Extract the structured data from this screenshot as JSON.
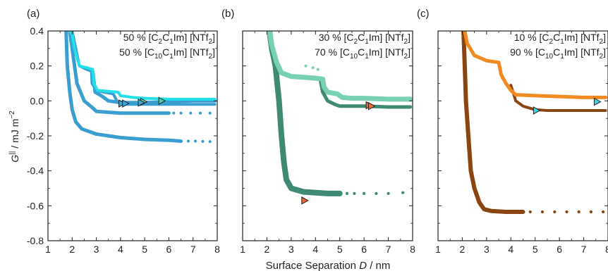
{
  "figure": {
    "ylabel_main": "G",
    "ylabel_sup": "||",
    "ylabel_rest": " / mJ m",
    "ylabel_exp": "−2",
    "xlabel_main": "Surface Separation ",
    "xlabel_var": "D",
    "xlabel_unit": " / nm"
  },
  "chart_data": [
    {
      "type": "scatter",
      "panel_label": "(a)",
      "legend": [
        {
          "parts": [
            "50 % [C",
            "2",
            "C",
            "1",
            "Im] [NTf",
            "2",
            "]"
          ]
        },
        {
          "parts": [
            "50 % [C",
            "10",
            "C",
            "1",
            "Im] [NTf",
            "2",
            "]"
          ]
        }
      ],
      "xlim": [
        1,
        8
      ],
      "ylim": [
        -0.8,
        0.4
      ],
      "xticks": [
        1,
        2,
        3,
        4,
        5,
        6,
        7,
        8
      ],
      "yticks": [
        -0.8,
        -0.6,
        -0.4,
        -0.2,
        0.0,
        0.2,
        0.4
      ],
      "series": [
        {
          "color": "#3a9fd0",
          "kind": "line",
          "width": 5,
          "points": [
            [
              1.75,
              0.4
            ],
            [
              1.8,
              0.2
            ],
            [
              1.9,
              0.05
            ],
            [
              2.0,
              -0.05
            ],
            [
              2.15,
              -0.12
            ],
            [
              2.4,
              -0.16
            ],
            [
              3.0,
              -0.19
            ],
            [
              4.0,
              -0.21
            ],
            [
              5.0,
              -0.22
            ],
            [
              6.0,
              -0.225
            ],
            [
              6.5,
              -0.23
            ]
          ]
        },
        {
          "color": "#3a9fd0",
          "kind": "dots",
          "points": [
            [
              6.5,
              -0.23
            ],
            [
              6.8,
              -0.23
            ],
            [
              7.1,
              -0.23
            ],
            [
              7.4,
              -0.232
            ],
            [
              7.7,
              -0.233
            ]
          ]
        },
        {
          "color": "#3a9fd0",
          "kind": "line",
          "width": 5,
          "points": [
            [
              1.9,
              0.4
            ],
            [
              2.0,
              0.3
            ],
            [
              2.2,
              0.1
            ],
            [
              2.5,
              0.0
            ],
            [
              2.85,
              -0.04
            ],
            [
              3.0,
              -0.06
            ],
            [
              3.5,
              -0.065
            ],
            [
              4.0,
              -0.07
            ],
            [
              5.0,
              -0.07
            ],
            [
              6.0,
              -0.07
            ]
          ]
        },
        {
          "color": "#3a9fd0",
          "kind": "dots",
          "points": [
            [
              6.2,
              -0.07
            ],
            [
              6.5,
              -0.07
            ],
            [
              6.9,
              -0.07
            ],
            [
              7.3,
              -0.07
            ],
            [
              7.7,
              -0.07
            ]
          ]
        },
        {
          "color": "#3a9fd0",
          "kind": "line",
          "width": 4,
          "points": [
            [
              2.0,
              0.4
            ],
            [
              2.3,
              0.2
            ],
            [
              2.6,
              0.18
            ],
            [
              2.8,
              0.17
            ],
            [
              2.82,
              0.1
            ],
            [
              3.0,
              0.06
            ],
            [
              3.3,
              0.05
            ],
            [
              3.7,
              0.04
            ],
            [
              3.85,
              0.0
            ],
            [
              4.0,
              -0.02
            ],
            [
              5.0,
              -0.02
            ],
            [
              6.0,
              -0.02
            ],
            [
              7.0,
              -0.02
            ],
            [
              7.9,
              -0.02
            ]
          ]
        },
        {
          "color": "#3a9fd0",
          "kind": "line",
          "width": 5,
          "points": [
            [
              2.85,
              0.17
            ],
            [
              2.95,
              0.05
            ],
            [
              3.2,
              0.03
            ],
            [
              3.5,
              0.0
            ],
            [
              4.0,
              -0.01
            ],
            [
              5.0,
              -0.01
            ],
            [
              6.0,
              -0.005
            ],
            [
              7.0,
              0.0
            ],
            [
              7.9,
              0.0
            ]
          ]
        },
        {
          "color": "#22e0ea",
          "kind": "line",
          "width": 4,
          "points": [
            [
              1.9,
              0.4
            ],
            [
              2.0,
              0.38
            ],
            [
              2.1,
              0.3
            ],
            [
              2.3,
              0.2
            ],
            [
              2.6,
              0.19
            ],
            [
              2.85,
              0.18
            ],
            [
              2.9,
              0.1
            ],
            [
              3.05,
              0.06
            ],
            [
              3.5,
              0.055
            ],
            [
              3.9,
              0.05
            ],
            [
              4.0,
              0.03
            ],
            [
              4.5,
              0.02
            ],
            [
              5.0,
              0.015
            ],
            [
              6.0,
              0.01
            ],
            [
              7.0,
              0.01
            ],
            [
              7.9,
              0.01
            ]
          ]
        }
      ],
      "markers": [
        {
          "x": 4.05,
          "y": -0.015,
          "fill": "#3aa8d8",
          "stroke": "#222"
        },
        {
          "x": 4.2,
          "y": -0.015,
          "fill": "#3aa8d8",
          "stroke": "#222"
        },
        {
          "x": 4.95,
          "y": -0.005,
          "fill": "#52c9a8",
          "stroke": "#222"
        },
        {
          "x": 4.85,
          "y": -0.01,
          "fill": "#3aa8d8",
          "stroke": "#222"
        },
        {
          "x": 5.7,
          "y": 0.0,
          "fill": "#52c9a8",
          "stroke": "#222"
        }
      ]
    },
    {
      "type": "scatter",
      "panel_label": "(b)",
      "legend": [
        {
          "parts": [
            "30 % [C",
            "2",
            "C",
            "1",
            "Im] [NTf",
            "2",
            "]"
          ]
        },
        {
          "parts": [
            "70 % [C",
            "10",
            "C",
            "1",
            "Im] [NTf",
            "2",
            "]"
          ]
        }
      ],
      "xlim": [
        1,
        8
      ],
      "ylim": [
        -0.8,
        0.4
      ],
      "xticks": [
        1,
        2,
        3,
        4,
        5,
        6,
        7,
        8
      ],
      "yticks": [
        -0.8,
        -0.6,
        -0.4,
        -0.2,
        0.0,
        0.2,
        0.4
      ],
      "series": [
        {
          "color": "#3e8a74",
          "kind": "line",
          "width": 8,
          "points": [
            [
              2.1,
              0.4
            ],
            [
              2.2,
              0.3
            ],
            [
              2.35,
              0.2
            ],
            [
              2.5,
              0.0
            ],
            [
              2.6,
              -0.2
            ],
            [
              2.7,
              -0.35
            ],
            [
              2.8,
              -0.45
            ],
            [
              3.0,
              -0.5
            ],
            [
              3.5,
              -0.52
            ],
            [
              4.0,
              -0.525
            ],
            [
              4.5,
              -0.53
            ],
            [
              5.0,
              -0.53
            ]
          ]
        },
        {
          "color": "#3e8a74",
          "kind": "dots",
          "points": [
            [
              5.3,
              -0.53
            ],
            [
              5.6,
              -0.53
            ],
            [
              6.0,
              -0.53
            ],
            [
              6.5,
              -0.53
            ],
            [
              7.0,
              -0.53
            ],
            [
              7.6,
              -0.525
            ]
          ]
        },
        {
          "color": "#3e8a74",
          "kind": "line",
          "width": 5,
          "points": [
            [
              4.2,
              0.12
            ],
            [
              4.3,
              0.05
            ],
            [
              4.5,
              0.0
            ],
            [
              4.8,
              -0.02
            ],
            [
              5.0,
              -0.03
            ],
            [
              5.5,
              -0.03
            ],
            [
              6.0,
              -0.03
            ],
            [
              7.0,
              -0.035
            ],
            [
              7.9,
              -0.035
            ]
          ]
        },
        {
          "color": "#78d2b2",
          "kind": "line",
          "width": 7,
          "points": [
            [
              2.1,
              0.4
            ],
            [
              2.2,
              0.32
            ],
            [
              2.4,
              0.22
            ],
            [
              2.6,
              0.16
            ],
            [
              3.0,
              0.14
            ],
            [
              3.5,
              0.135
            ],
            [
              4.0,
              0.13
            ],
            [
              4.3,
              0.125
            ],
            [
              4.35,
              0.08
            ],
            [
              4.5,
              0.05
            ],
            [
              4.9,
              0.04
            ],
            [
              5.1,
              0.02
            ],
            [
              5.5,
              0.015
            ],
            [
              6.0,
              0.015
            ],
            [
              7.0,
              0.01
            ],
            [
              7.9,
              0.01
            ]
          ]
        },
        {
          "color": "#78d2b2",
          "kind": "dots",
          "points": [
            [
              3.6,
              0.2
            ],
            [
              3.9,
              0.19
            ],
            [
              4.1,
              0.18
            ]
          ]
        }
      ],
      "markers": [
        {
          "x": 6.2,
          "y": -0.025,
          "fill": "#e8693a",
          "stroke": "#222"
        },
        {
          "x": 6.3,
          "y": -0.03,
          "fill": "#e8693a",
          "stroke": "#222"
        },
        {
          "x": 3.55,
          "y": -0.57,
          "fill": "#e8693a",
          "stroke": "#222"
        }
      ]
    },
    {
      "type": "scatter",
      "panel_label": "(c)",
      "legend": [
        {
          "parts": [
            "10 % [C",
            "2",
            "C",
            "1",
            "Im] [NTf",
            "2",
            "]"
          ]
        },
        {
          "parts": [
            "90 % [C",
            "10",
            "C",
            "1",
            "Im] [NTf",
            "2",
            "]"
          ]
        }
      ],
      "xlim": [
        1,
        8
      ],
      "ylim": [
        -0.8,
        0.4
      ],
      "xticks": [
        1,
        2,
        3,
        4,
        5,
        6,
        7,
        8
      ],
      "yticks": [
        -0.8,
        -0.6,
        -0.4,
        -0.2,
        0.0,
        0.2,
        0.4
      ],
      "series": [
        {
          "color": "#8a4513",
          "kind": "line",
          "width": 6,
          "points": [
            [
              2.05,
              0.4
            ],
            [
              2.1,
              0.2
            ],
            [
              2.15,
              0.0
            ],
            [
              2.25,
              -0.2
            ],
            [
              2.35,
              -0.4
            ],
            [
              2.5,
              -0.5
            ],
            [
              2.7,
              -0.58
            ],
            [
              2.9,
              -0.62
            ],
            [
              3.2,
              -0.63
            ],
            [
              3.8,
              -0.635
            ],
            [
              4.5,
              -0.635
            ]
          ]
        },
        {
          "color": "#8a4513",
          "kind": "dots",
          "points": [
            [
              4.8,
              -0.635
            ],
            [
              5.3,
              -0.635
            ],
            [
              5.8,
              -0.635
            ],
            [
              6.3,
              -0.635
            ],
            [
              6.8,
              -0.635
            ],
            [
              7.3,
              -0.635
            ],
            [
              7.8,
              -0.635
            ]
          ]
        },
        {
          "color": "#8a4513",
          "kind": "line",
          "width": 4,
          "points": [
            [
              4.0,
              0.09
            ],
            [
              4.2,
              0.0
            ],
            [
              4.5,
              -0.03
            ],
            [
              5.0,
              -0.05
            ],
            [
              5.5,
              -0.055
            ],
            [
              6.0,
              -0.055
            ],
            [
              7.0,
              -0.055
            ],
            [
              7.9,
              -0.055
            ]
          ]
        },
        {
          "color": "#f28a22",
          "kind": "line",
          "width": 5,
          "points": [
            [
              2.1,
              0.4
            ],
            [
              2.2,
              0.33
            ],
            [
              2.5,
              0.26
            ],
            [
              3.0,
              0.23
            ],
            [
              3.5,
              0.22
            ],
            [
              3.6,
              0.15
            ],
            [
              3.8,
              0.1
            ],
            [
              4.0,
              0.06
            ],
            [
              4.2,
              0.035
            ],
            [
              5.0,
              0.03
            ],
            [
              6.0,
              0.025
            ],
            [
              7.0,
              0.02
            ],
            [
              7.9,
              0.02
            ]
          ]
        }
      ],
      "markers": [
        {
          "x": 5.05,
          "y": -0.055,
          "fill": "#3fd4e0",
          "stroke": "#222"
        },
        {
          "x": 7.55,
          "y": -0.005,
          "fill": "#3fd4e0",
          "stroke": "#222"
        }
      ]
    }
  ]
}
